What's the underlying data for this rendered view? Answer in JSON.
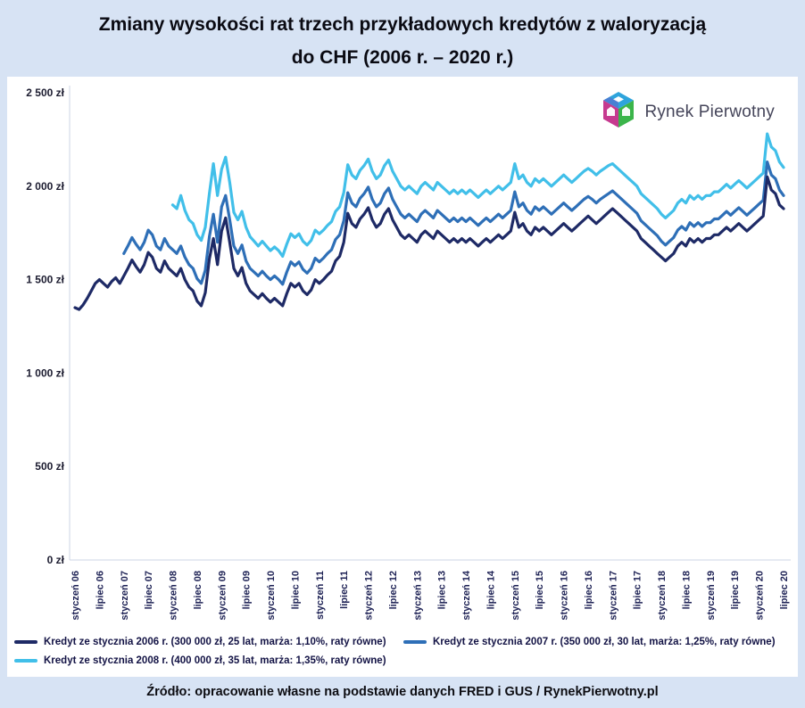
{
  "title": {
    "line1": "Zmiany wysokości rat trzech przykładowych kredytów z waloryzacją",
    "line2": "do CHF (2006 r. – 2020 r.)"
  },
  "logo": {
    "text": "Rynek Pierwotny"
  },
  "source": "Źródło: opracowanie własne na podstawie danych FRED i GUS / RynekPierwotny.pl",
  "colors": {
    "background": "#d7e3f4",
    "plot_background": "#ffffff",
    "series_2006": "#1e2a66",
    "series_2007": "#2e6fb7",
    "series_2008": "#41bfe9"
  },
  "chart_data": {
    "type": "line",
    "unit": "zł",
    "ylim": [
      0,
      2500
    ],
    "grid": false,
    "legend_position": "bottom",
    "y_ticks": [
      "0 zł",
      "500 zł",
      "1 000 zł",
      "1 500 zł",
      "2 000 zł",
      "2 500 zł"
    ],
    "y_tick_values": [
      0,
      500,
      1000,
      1500,
      2000,
      2500
    ],
    "x_ticks": [
      "styczeń 06",
      "lipiec 06",
      "styczeń 07",
      "lipiec 07",
      "styczeń 08",
      "lipiec 08",
      "styczeń 09",
      "lipiec 09",
      "styczeń 10",
      "lipiec 10",
      "styczeń 11",
      "lipiec 11",
      "styczeń 12",
      "lipiec 12",
      "styczeń 13",
      "lipiec 13",
      "styczeń 14",
      "lipiec 14",
      "styczeń 15",
      "lipiec 15",
      "styczeń 16",
      "lipiec 16",
      "styczeń 17",
      "lipiec 17",
      "styczeń 18",
      "lipiec 18",
      "styczeń 19",
      "lipiec 19",
      "styczeń 20",
      "lipiec 20"
    ],
    "x_tick_month_indices": [
      0,
      6,
      12,
      18,
      24,
      30,
      36,
      42,
      48,
      54,
      60,
      66,
      72,
      78,
      84,
      90,
      96,
      102,
      108,
      114,
      120,
      126,
      132,
      138,
      144,
      150,
      156,
      162,
      168,
      174
    ],
    "months_total": 175,
    "series": [
      {
        "name": "Kredyt ze stycznia 2006 r. (300 000 zł, 25 lat, marża: 1,10%, raty równe)",
        "color": "#1e2a66",
        "start_month": 0,
        "values": [
          1350,
          1340,
          1365,
          1400,
          1440,
          1480,
          1500,
          1480,
          1460,
          1490,
          1510,
          1480,
          1520,
          1560,
          1605,
          1570,
          1540,
          1580,
          1645,
          1620,
          1560,
          1540,
          1600,
          1560,
          1540,
          1520,
          1560,
          1500,
          1460,
          1440,
          1385,
          1360,
          1430,
          1610,
          1720,
          1580,
          1760,
          1830,
          1700,
          1560,
          1520,
          1565,
          1480,
          1440,
          1420,
          1400,
          1425,
          1400,
          1380,
          1400,
          1380,
          1360,
          1425,
          1480,
          1460,
          1480,
          1440,
          1420,
          1445,
          1500,
          1480,
          1500,
          1525,
          1545,
          1600,
          1625,
          1700,
          1855,
          1800,
          1780,
          1825,
          1850,
          1885,
          1820,
          1780,
          1800,
          1850,
          1880,
          1820,
          1780,
          1740,
          1720,
          1740,
          1720,
          1700,
          1740,
          1760,
          1740,
          1720,
          1760,
          1740,
          1720,
          1700,
          1720,
          1700,
          1720,
          1700,
          1720,
          1700,
          1680,
          1700,
          1720,
          1700,
          1720,
          1740,
          1720,
          1740,
          1760,
          1860,
          1780,
          1800,
          1760,
          1740,
          1780,
          1760,
          1780,
          1760,
          1740,
          1760,
          1780,
          1800,
          1780,
          1760,
          1780,
          1800,
          1820,
          1840,
          1820,
          1800,
          1820,
          1840,
          1860,
          1880,
          1860,
          1840,
          1820,
          1800,
          1780,
          1760,
          1720,
          1700,
          1680,
          1660,
          1640,
          1620,
          1600,
          1620,
          1640,
          1680,
          1700,
          1680,
          1720,
          1700,
          1720,
          1700,
          1720,
          1720,
          1740,
          1740,
          1760,
          1780,
          1760,
          1780,
          1800,
          1780,
          1760,
          1780,
          1800,
          1820,
          1840,
          2050,
          1980,
          1960,
          1900,
          1880
        ]
      },
      {
        "name": "Kredyt ze stycznia 2007 r. (350 000 zł, 30 lat, marża: 1,25%, raty równe)",
        "color": "#2e6fb7",
        "start_month": 12,
        "values": [
          1640,
          1680,
          1725,
          1690,
          1660,
          1700,
          1765,
          1740,
          1680,
          1660,
          1720,
          1680,
          1660,
          1640,
          1680,
          1620,
          1580,
          1560,
          1505,
          1480,
          1550,
          1730,
          1850,
          1700,
          1890,
          1950,
          1820,
          1680,
          1640,
          1685,
          1600,
          1560,
          1540,
          1520,
          1545,
          1520,
          1500,
          1520,
          1500,
          1475,
          1540,
          1595,
          1575,
          1595,
          1555,
          1535,
          1560,
          1615,
          1595,
          1615,
          1640,
          1660,
          1715,
          1740,
          1815,
          1965,
          1910,
          1890,
          1935,
          1960,
          1995,
          1930,
          1890,
          1910,
          1960,
          1990,
          1930,
          1890,
          1850,
          1830,
          1850,
          1830,
          1810,
          1850,
          1870,
          1850,
          1830,
          1870,
          1850,
          1830,
          1810,
          1830,
          1810,
          1830,
          1810,
          1830,
          1810,
          1790,
          1810,
          1830,
          1810,
          1830,
          1850,
          1830,
          1850,
          1870,
          1970,
          1890,
          1910,
          1870,
          1850,
          1890,
          1870,
          1890,
          1870,
          1850,
          1870,
          1890,
          1910,
          1890,
          1870,
          1890,
          1910,
          1930,
          1945,
          1930,
          1910,
          1930,
          1945,
          1960,
          1975,
          1955,
          1935,
          1915,
          1895,
          1875,
          1855,
          1815,
          1795,
          1775,
          1755,
          1735,
          1705,
          1685,
          1705,
          1725,
          1765,
          1785,
          1765,
          1805,
          1785,
          1805,
          1785,
          1805,
          1805,
          1825,
          1825,
          1845,
          1865,
          1845,
          1865,
          1885,
          1865,
          1845,
          1865,
          1885,
          1905,
          1925,
          2130,
          2060,
          2040,
          1980,
          1950
        ]
      },
      {
        "name": "Kredyt ze stycznia 2008 r. (400 000 zł, 35 lat, marża: 1,35%, raty równe)",
        "color": "#41bfe9",
        "start_month": 24,
        "values": [
          1900,
          1880,
          1950,
          1870,
          1820,
          1800,
          1740,
          1710,
          1780,
          1960,
          2120,
          1950,
          2090,
          2155,
          2020,
          1860,
          1820,
          1865,
          1780,
          1730,
          1705,
          1680,
          1705,
          1680,
          1655,
          1675,
          1655,
          1625,
          1690,
          1745,
          1725,
          1745,
          1705,
          1685,
          1710,
          1765,
          1745,
          1765,
          1790,
          1810,
          1865,
          1890,
          1965,
          2115,
          2060,
          2040,
          2085,
          2110,
          2145,
          2080,
          2040,
          2060,
          2110,
          2140,
          2080,
          2040,
          2000,
          1980,
          2000,
          1980,
          1960,
          2000,
          2020,
          2000,
          1980,
          2020,
          2000,
          1980,
          1960,
          1980,
          1960,
          1980,
          1960,
          1980,
          1960,
          1940,
          1960,
          1980,
          1960,
          1980,
          2000,
          1980,
          2000,
          2020,
          2120,
          2040,
          2060,
          2020,
          2000,
          2040,
          2020,
          2040,
          2020,
          2000,
          2020,
          2040,
          2060,
          2040,
          2020,
          2040,
          2060,
          2080,
          2095,
          2080,
          2060,
          2080,
          2095,
          2110,
          2120,
          2100,
          2080,
          2060,
          2040,
          2020,
          2000,
          1960,
          1940,
          1920,
          1900,
          1880,
          1850,
          1830,
          1850,
          1870,
          1910,
          1930,
          1910,
          1950,
          1930,
          1950,
          1930,
          1950,
          1950,
          1970,
          1970,
          1990,
          2010,
          1990,
          2010,
          2030,
          2010,
          1990,
          2010,
          2030,
          2050,
          2070,
          2280,
          2210,
          2190,
          2130,
          2100
        ]
      }
    ]
  }
}
